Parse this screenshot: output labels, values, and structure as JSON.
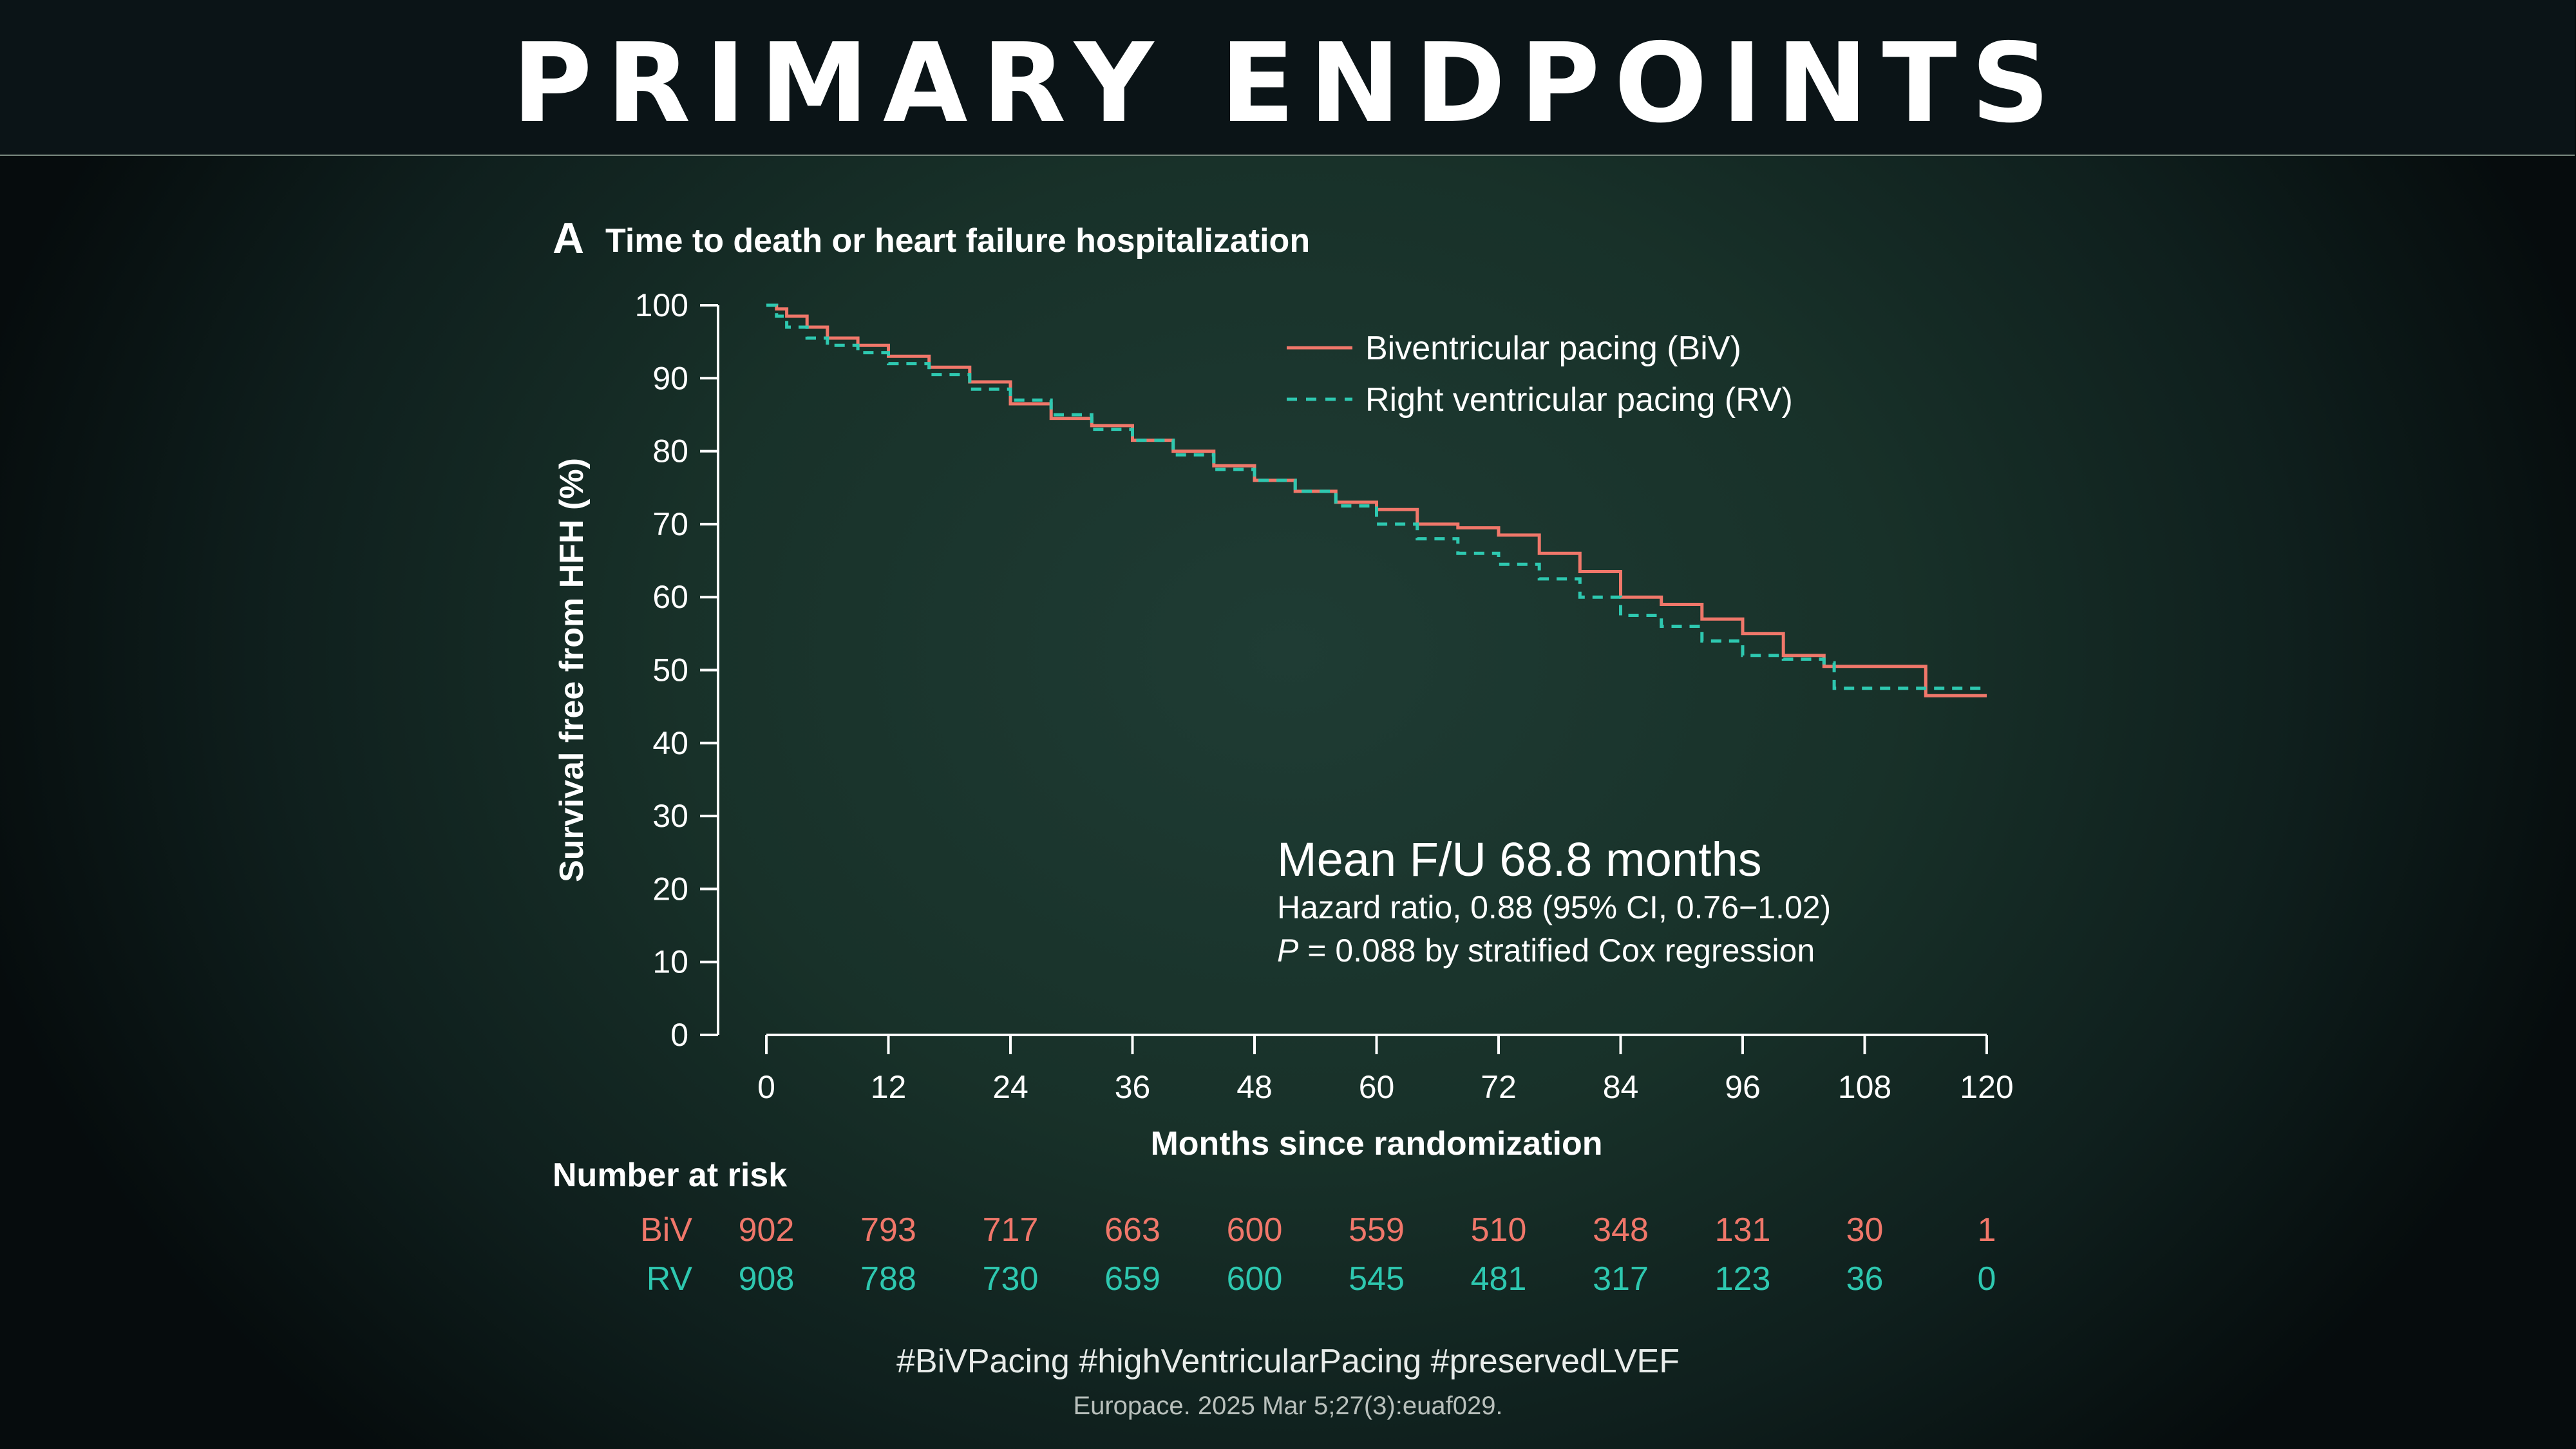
{
  "header": {
    "title": "PRIMARY ENDPOINTS"
  },
  "panel": {
    "letter": "A",
    "title": "Time to death or heart failure hospitalization"
  },
  "stats": {
    "mean_fu": "Mean F/U 68.8 months",
    "hazard_ratio": "Hazard ratio, 0.88 (95% CI, 0.76−1.02)",
    "p_symbol": "P",
    "p_text": " = 0.088 by stratified Cox regression"
  },
  "risk_table": {
    "heading": "Number at risk",
    "rows": [
      {
        "label": "BiV",
        "values": [
          "902",
          "793",
          "717",
          "663",
          "600",
          "559",
          "510",
          "348",
          "131",
          "30",
          "1"
        ]
      },
      {
        "label": "RV",
        "values": [
          "908",
          "788",
          "730",
          "659",
          "600",
          "545",
          "481",
          "317",
          "123",
          "36",
          "0"
        ]
      }
    ]
  },
  "footer": {
    "hashtags": "#BiVPacing #highVentricularPacing #preservedLVEF",
    "citation": "Europace. 2025 Mar 5;27(3):euaf029."
  },
  "colors": {
    "biv": "#f0776a",
    "rv": "#2ec8b0",
    "axis": "#ffffff"
  },
  "chart_data": {
    "type": "line",
    "title": "Time to death or heart failure hospitalization",
    "xlabel": "Months since randomization",
    "ylabel": "Survival free from HFH (%)",
    "xlim": [
      0,
      120
    ],
    "ylim": [
      0,
      100
    ],
    "xticks": [
      0,
      12,
      24,
      36,
      48,
      60,
      72,
      84,
      96,
      108,
      120
    ],
    "yticks": [
      0,
      10,
      20,
      30,
      40,
      50,
      60,
      70,
      80,
      90,
      100
    ],
    "grid": false,
    "legend_position": "top-right",
    "series": [
      {
        "name": "Biventricular pacing (BiV)",
        "style": "solid",
        "x": [
          0,
          1,
          2,
          4,
          6,
          9,
          12,
          16,
          20,
          24,
          28,
          32,
          36,
          40,
          44,
          48,
          52,
          56,
          60,
          64,
          68,
          72,
          76,
          80,
          84,
          88,
          92,
          96,
          100,
          104,
          108,
          114,
          114,
          120
        ],
        "y": [
          100,
          99.5,
          98.5,
          97,
          95.5,
          94.5,
          93,
          91.5,
          89.5,
          86.5,
          84.5,
          83.5,
          81.5,
          80,
          78,
          76,
          74.5,
          73,
          72,
          70,
          69.5,
          68.5,
          66,
          63.5,
          60,
          59,
          57,
          55,
          52,
          50.5,
          50.5,
          50.5,
          46.5,
          46.5
        ]
      },
      {
        "name": "Right ventricular pacing (RV)",
        "style": "dashed",
        "x": [
          0,
          1,
          2,
          4,
          6,
          9,
          12,
          16,
          20,
          24,
          28,
          32,
          36,
          40,
          44,
          48,
          52,
          56,
          60,
          64,
          68,
          72,
          76,
          80,
          84,
          88,
          92,
          96,
          100,
          104,
          105,
          110,
          120
        ],
        "y": [
          100,
          98.5,
          97,
          95.5,
          94.5,
          93.5,
          92,
          90.5,
          88.5,
          87,
          85,
          83,
          81.5,
          79.5,
          77.5,
          76,
          74.5,
          72.5,
          70,
          68,
          66,
          64.5,
          62.5,
          60,
          57.5,
          56,
          54,
          52,
          51.5,
          51,
          47.5,
          47.5,
          47.5
        ]
      }
    ]
  }
}
